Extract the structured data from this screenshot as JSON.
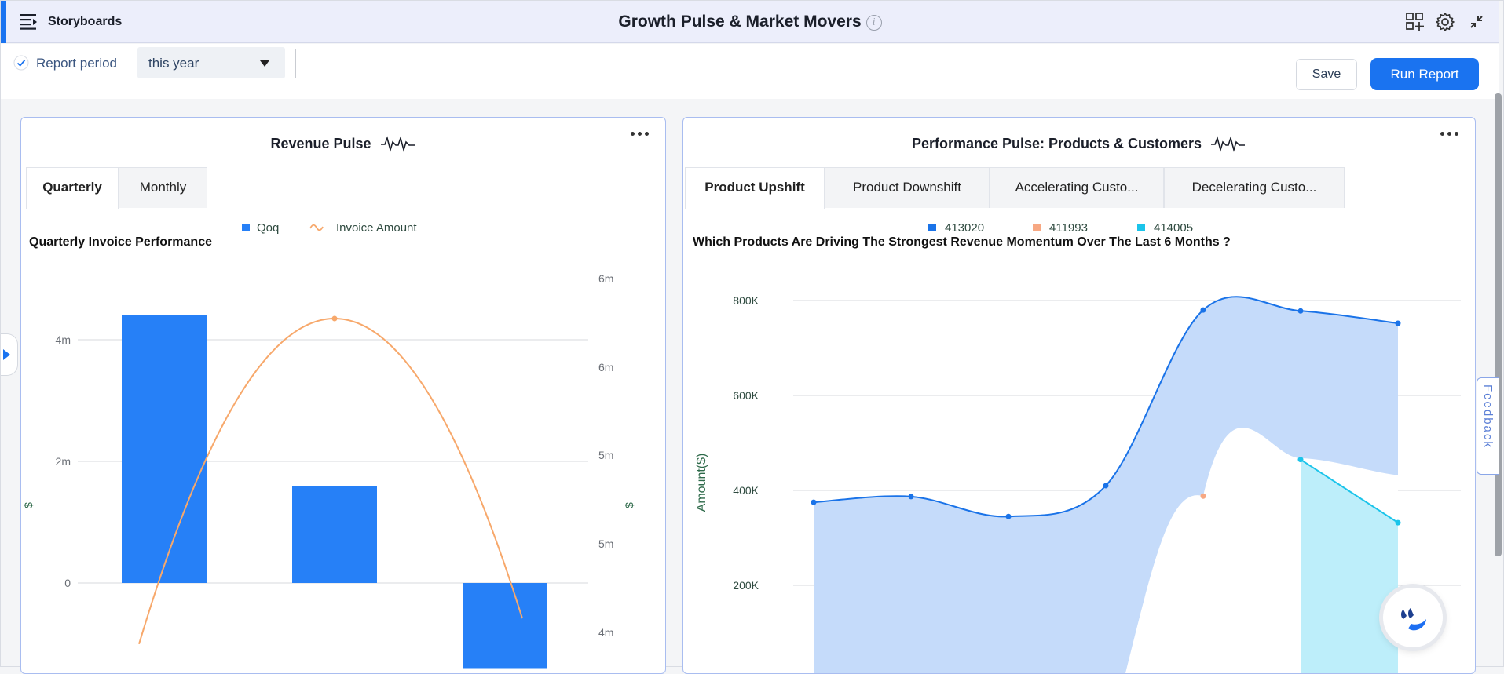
{
  "app": {
    "brand": "Storyboards",
    "title": "Growth Pulse & Market Movers",
    "info_icon": "i"
  },
  "filters": {
    "report_period_label": "Report period",
    "report_period_value": "this year"
  },
  "actions": {
    "save_label": "Save",
    "run_label": "Run Report"
  },
  "feedback_label": "Feedback",
  "left_panel": {
    "title": "Revenue Pulse",
    "tabs": [
      {
        "label": "Quarterly",
        "active": true
      },
      {
        "label": "Monthly",
        "active": false
      }
    ],
    "chart_title": "Quarterly Invoice Performance"
  },
  "right_panel": {
    "title": "Performance Pulse: Products & Customers",
    "tabs": [
      {
        "label": "Product Upshift",
        "active": true
      },
      {
        "label": "Product Downshift",
        "active": false
      },
      {
        "label": "Accelerating Custo...",
        "active": false
      },
      {
        "label": "Decelerating Custo...",
        "active": false
      }
    ],
    "chart_title": "Which Products Are Driving The Strongest Revenue Momentum Over The Last 6 Months ?"
  },
  "colors": {
    "accent": "#1a73f0",
    "bar_blue": "#2680f7",
    "line_orange": "#f7a86b",
    "series_1": "#1a73e8",
    "series_2": "#f7a883",
    "series_3": "#1bc4ea"
  },
  "chart_data": [
    {
      "type": "bar",
      "title": "Quarterly Invoice Performance",
      "legend": [
        "Qoq",
        "Invoice Amount"
      ],
      "ylabel": "$",
      "y2label": "$",
      "yticks": [
        "4m",
        "2m",
        "0"
      ],
      "y2ticks": [
        "6m",
        "6m",
        "5m",
        "5m",
        "4m"
      ],
      "ylim": [
        -1.4,
        4.4
      ],
      "series": [
        {
          "name": "Qoq",
          "type": "bar",
          "values": [
            4.4,
            1.6,
            -1.4
          ]
        },
        {
          "name": "Invoice Amount",
          "type": "line",
          "values": [
            3.6,
            6.0,
            3.6
          ]
        }
      ],
      "y2lim": [
        3.6,
        6.0
      ]
    },
    {
      "type": "area",
      "title": "Which Products Are Driving The Strongest Revenue Momentum Over The Last 6 Months ?",
      "ylabel": "Amount($)",
      "yticks": [
        "800K",
        "600K",
        "400K",
        "200K"
      ],
      "ylim": [
        100000,
        800000
      ],
      "legend_position": "top",
      "series": [
        {
          "name": "413020",
          "values": [
            375000,
            387000,
            345000,
            410000,
            780000,
            778000,
            752000
          ]
        },
        {
          "name": "411993",
          "values": [
            null,
            null,
            null,
            null,
            388000,
            468000,
            null
          ]
        },
        {
          "name": "414005",
          "values": [
            null,
            null,
            null,
            null,
            null,
            465000,
            332000
          ]
        }
      ]
    }
  ]
}
